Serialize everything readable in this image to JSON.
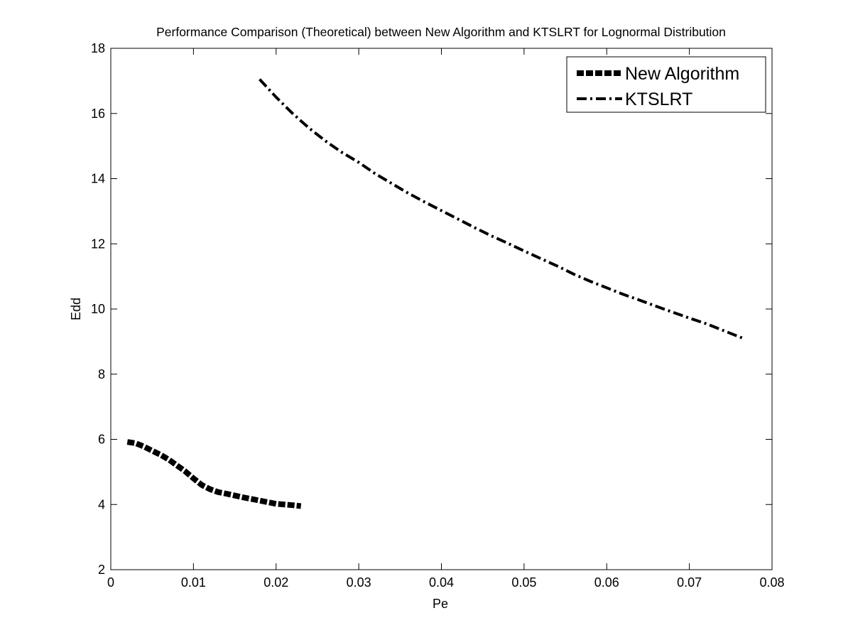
{
  "chart_data": {
    "type": "line",
    "title": "Performance Comparison (Theoretical) between New Algorithm and KTSLRT for Lognormal Distribution",
    "xlabel": "Pe",
    "ylabel": "Edd",
    "xlim": [
      0,
      0.08
    ],
    "ylim": [
      2,
      18
    ],
    "xticks": [
      0,
      0.01,
      0.02,
      0.03,
      0.04,
      0.05,
      0.06,
      0.07,
      0.08
    ],
    "xtick_labels": [
      "0",
      "0.01",
      "0.02",
      "0.03",
      "0.04",
      "0.05",
      "0.06",
      "0.07",
      "0.08"
    ],
    "yticks": [
      2,
      4,
      6,
      8,
      10,
      12,
      14,
      16,
      18
    ],
    "ytick_labels": [
      "2",
      "4",
      "6",
      "8",
      "10",
      "12",
      "14",
      "16",
      "18"
    ],
    "grid": false,
    "legend_position": "top-right",
    "series": [
      {
        "name": "New Algorithm",
        "style": "dashed-thick",
        "color": "#000000",
        "x": [
          0.002,
          0.003,
          0.004,
          0.005,
          0.006,
          0.007,
          0.008,
          0.009,
          0.01,
          0.011,
          0.012,
          0.013,
          0.014,
          0.016,
          0.018,
          0.02,
          0.022,
          0.023
        ],
        "y": [
          5.92,
          5.88,
          5.78,
          5.65,
          5.53,
          5.38,
          5.2,
          5.02,
          4.8,
          4.6,
          4.47,
          4.38,
          4.33,
          4.22,
          4.12,
          4.02,
          3.98,
          3.95
        ]
      },
      {
        "name": "KTSLRT",
        "style": "dashdot",
        "color": "#000000",
        "x": [
          0.018,
          0.02,
          0.022,
          0.024,
          0.026,
          0.028,
          0.03,
          0.032,
          0.034,
          0.036,
          0.038,
          0.04,
          0.042,
          0.044,
          0.046,
          0.048,
          0.05,
          0.052,
          0.054,
          0.056,
          0.058,
          0.06,
          0.062,
          0.064,
          0.066,
          0.068,
          0.07,
          0.072,
          0.074,
          0.0765
        ],
        "y": [
          17.05,
          16.5,
          16.0,
          15.55,
          15.15,
          14.8,
          14.5,
          14.15,
          13.85,
          13.55,
          13.28,
          13.02,
          12.76,
          12.5,
          12.25,
          12.02,
          11.78,
          11.55,
          11.32,
          11.07,
          10.85,
          10.65,
          10.45,
          10.27,
          10.08,
          9.9,
          9.72,
          9.55,
          9.35,
          9.1
        ]
      }
    ]
  }
}
